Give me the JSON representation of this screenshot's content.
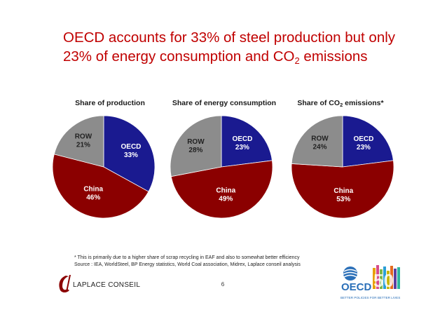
{
  "title": {
    "line1": "OECD accounts for 33% of steel production but only",
    "line2_pre": "23% of energy consumption and CO",
    "line2_sub": "2",
    "line2_post": " emissions"
  },
  "colors": {
    "OECD": "#1a1a90",
    "China": "#8b0000",
    "ROW": "#8c8c8c",
    "title": "#c00000"
  },
  "chart_data": [
    {
      "type": "pie",
      "title": "Share of production",
      "slices": [
        {
          "label": "OECD",
          "value": 33,
          "display": "33%"
        },
        {
          "label": "China",
          "value": 46,
          "display": "46%"
        },
        {
          "label": "ROW",
          "value": 21,
          "display": "21%"
        }
      ]
    },
    {
      "type": "pie",
      "title": "Share of energy consumption",
      "slices": [
        {
          "label": "OECD",
          "value": 23,
          "display": "23%"
        },
        {
          "label": "China",
          "value": 49,
          "display": "49%"
        },
        {
          "label": "ROW",
          "value": 28,
          "display": "28%"
        }
      ]
    },
    {
      "type": "pie",
      "title_pre": "Share of CO",
      "title_sub": "2",
      "title_post": " emissions*",
      "slices": [
        {
          "label": "OECD",
          "value": 23,
          "display": "23%"
        },
        {
          "label": "China",
          "value": 53,
          "display": "53%"
        },
        {
          "label": "ROW",
          "value": 24,
          "display": "24%"
        }
      ]
    }
  ],
  "footnote": "* This is primarily due to a higher share of scrap recycling in EAF and also to somewhat better efficiency",
  "source": "Source : IEA, WorldSteel, BP Energy statistics, World Coal association, Midrex, Laplace conseil analysis",
  "page_number": "6",
  "logos": {
    "laplace_text": "LAPLACE CONSEIL",
    "oecd_text": "OECD",
    "oecd_anniversary": "50",
    "oecd_tagline": "BETTER POLICIES FOR BETTER LIVES"
  }
}
